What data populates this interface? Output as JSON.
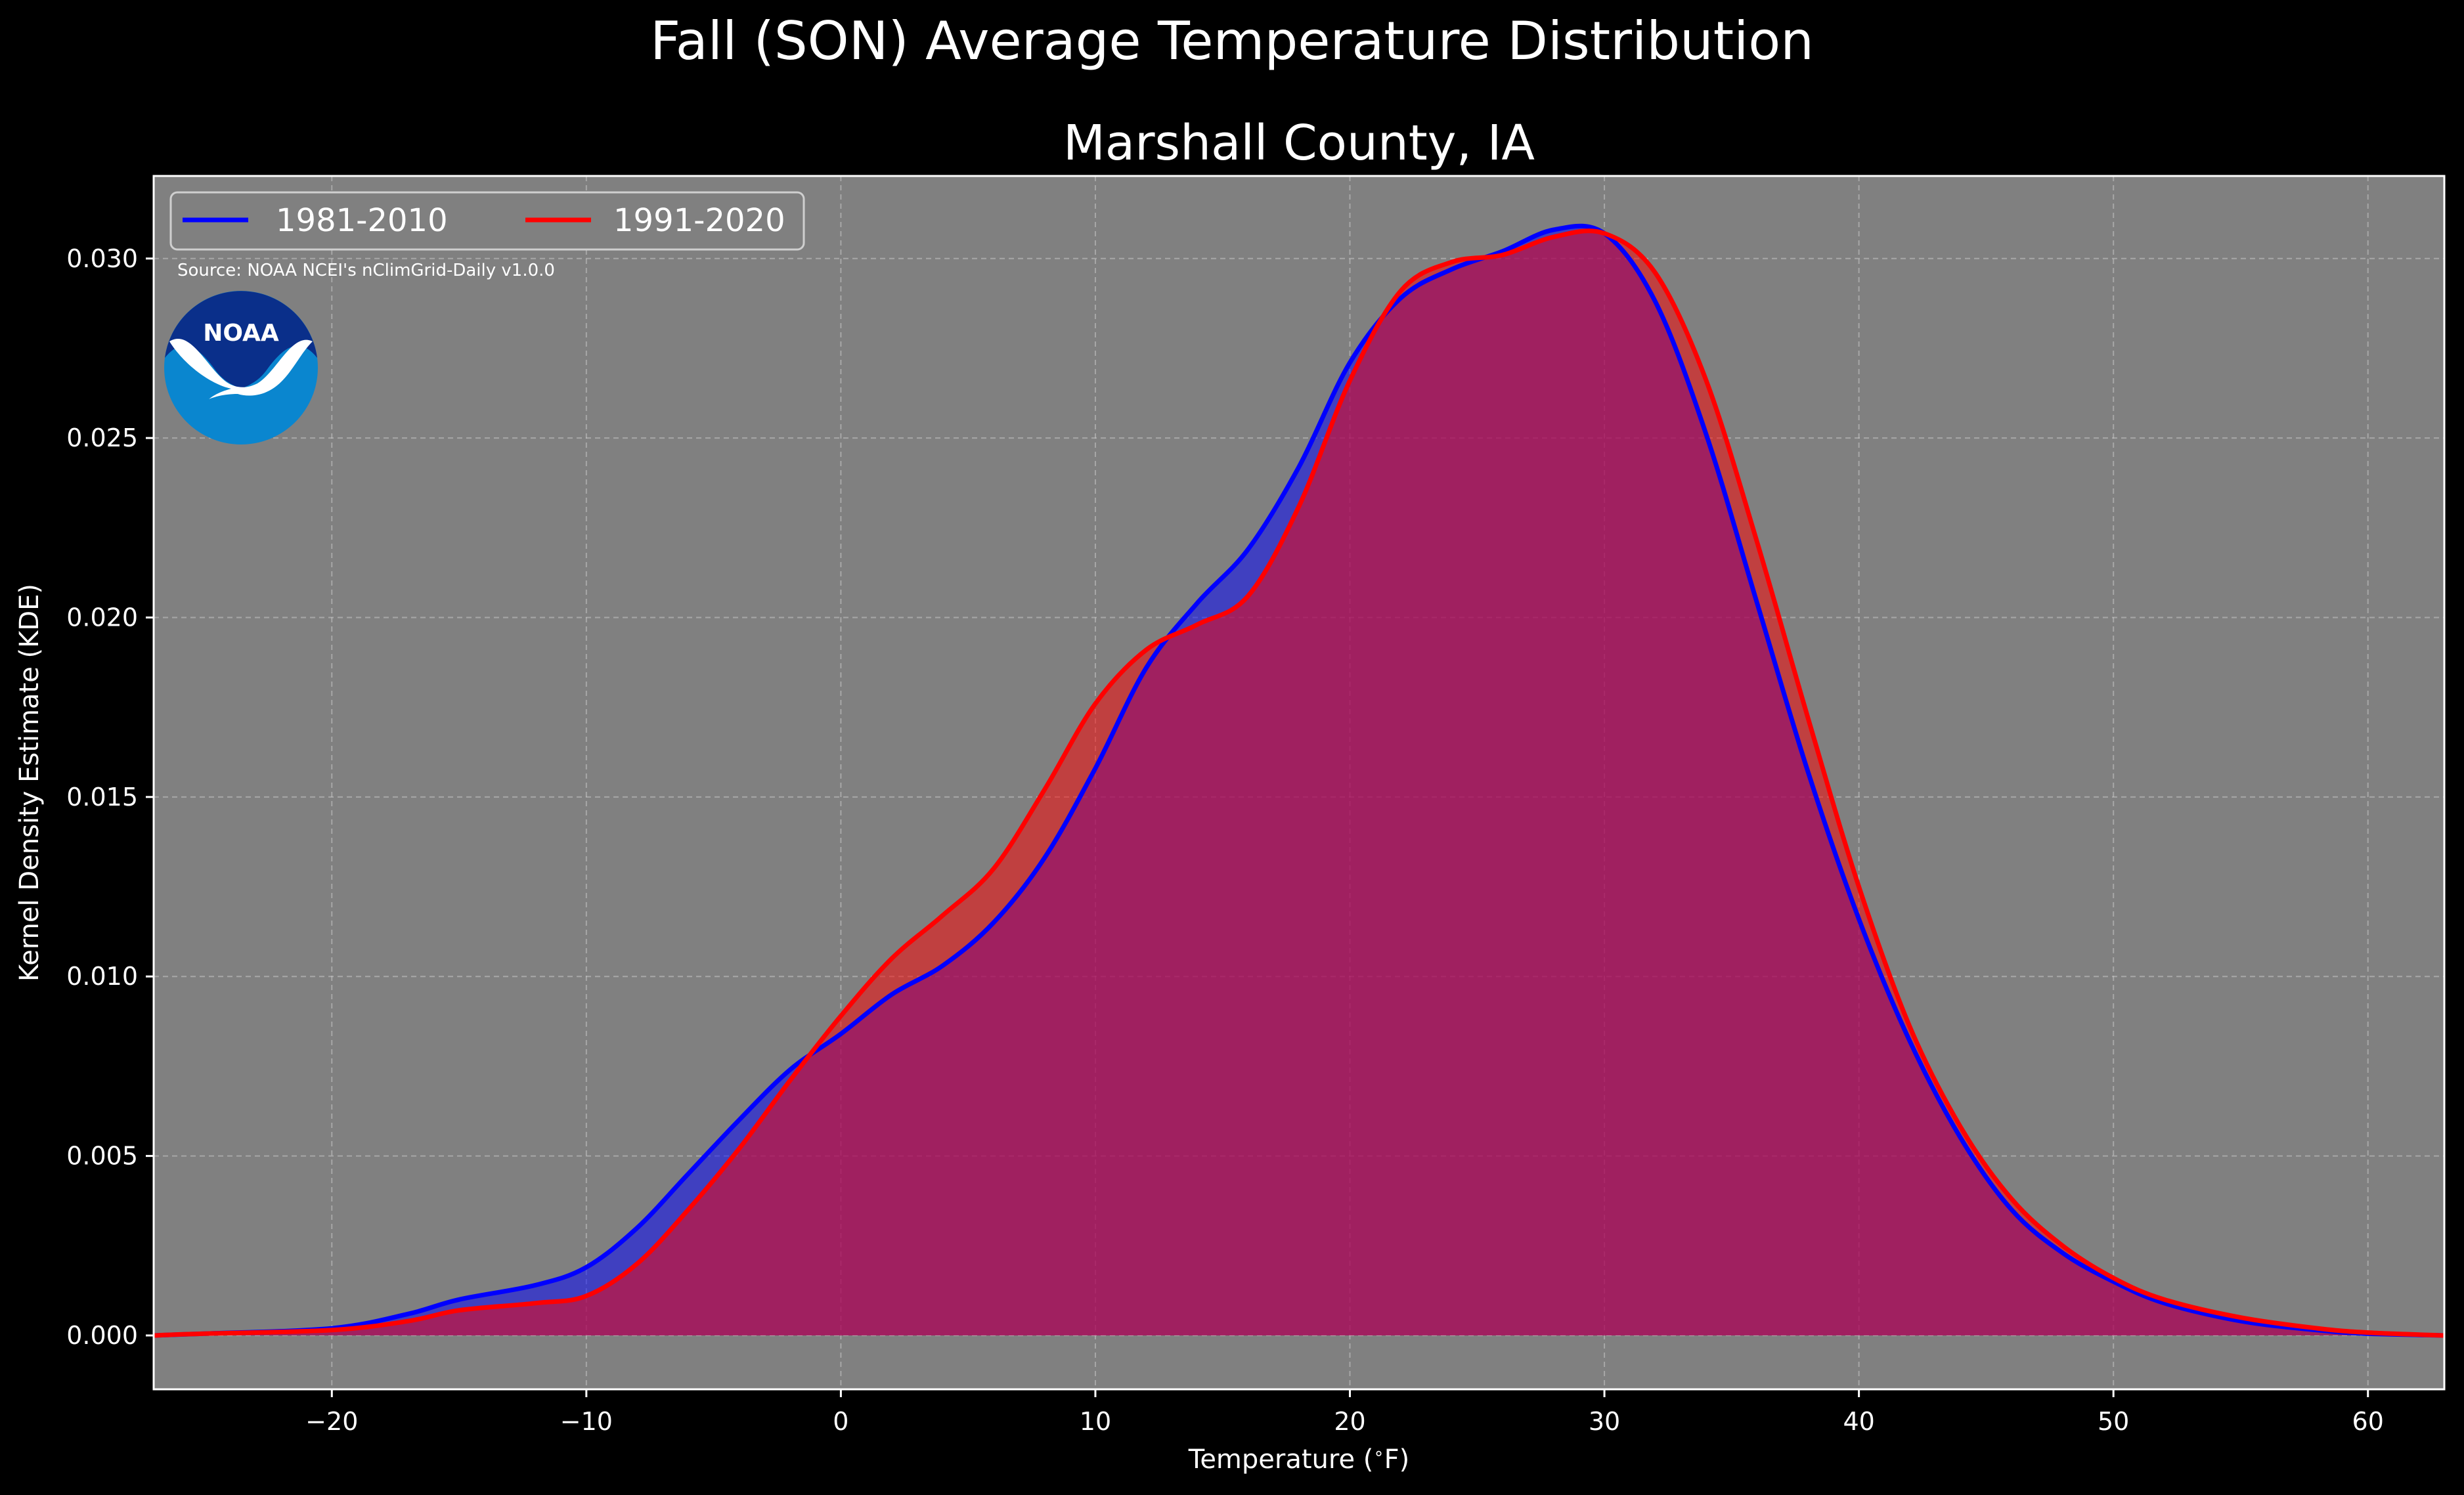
{
  "colors": {
    "background": "#000000",
    "plot_background": "#808080",
    "series_1981": "#0000ff",
    "series_1991": "#ff0000",
    "noaa_dark_blue": "#0a2f8a",
    "noaa_light_blue": "#0a86cf"
  },
  "figure": {
    "suptitle": "Fall (SON) Average Temperature Distribution",
    "subtitle": "Marshall County, IA",
    "source": "Source: NOAA NCEI's nClimGrid-Daily v1.0.0",
    "logo_text": "NOAA"
  },
  "chart_data": {
    "type": "area",
    "title": "Marshall County, IA",
    "xlabel": "Temperature ($^\\circ$F)",
    "ylabel": "Kernel Density Estimate (KDE)",
    "xlim": [
      -27,
      63
    ],
    "ylim": [
      -0.0015,
      0.0323
    ],
    "x_ticks": [
      -20,
      -10,
      0,
      10,
      20,
      30,
      40,
      50,
      60
    ],
    "x_tick_labels": [
      "−20",
      "−10",
      "0",
      "10",
      "20",
      "30",
      "40",
      "50",
      "60"
    ],
    "y_ticks": [
      0.0,
      0.005,
      0.01,
      0.015,
      0.02,
      0.025,
      0.03
    ],
    "y_tick_labels": [
      "0.000",
      "0.005",
      "0.010",
      "0.015",
      "0.020",
      "0.025",
      "0.030"
    ],
    "grid": true,
    "legend": "upper left",
    "x": [
      -27,
      -25,
      -20,
      -17,
      -15,
      -12,
      -10,
      -8,
      -6,
      -4,
      -2,
      0,
      2,
      4,
      6,
      8,
      10,
      12,
      14,
      16,
      18,
      20,
      22,
      24,
      26,
      28,
      30,
      32,
      34,
      36,
      38,
      40,
      42,
      44,
      46,
      48,
      50,
      52,
      55,
      58,
      60,
      63
    ],
    "series": [
      {
        "name": "1981-2010",
        "color": "#0000ff",
        "values": [
          0.0,
          5e-05,
          0.0002,
          0.0006,
          0.001,
          0.0014,
          0.0019,
          0.003,
          0.0045,
          0.006,
          0.0074,
          0.0084,
          0.0095,
          0.0103,
          0.0115,
          0.0133,
          0.0158,
          0.0186,
          0.0204,
          0.0219,
          0.0242,
          0.0271,
          0.0289,
          0.0297,
          0.0302,
          0.0308,
          0.0307,
          0.0288,
          0.0251,
          0.0204,
          0.0157,
          0.0116,
          0.0082,
          0.0055,
          0.0035,
          0.0023,
          0.0015,
          0.0009,
          0.0004,
          0.00015,
          5e-05,
          0.0
        ]
      },
      {
        "name": "1991-2020",
        "color": "#ff0000",
        "values": [
          0.0,
          5e-05,
          0.00015,
          0.0004,
          0.0007,
          0.0009,
          0.0011,
          0.002,
          0.0035,
          0.0052,
          0.0071,
          0.0089,
          0.0105,
          0.0117,
          0.013,
          0.0152,
          0.0176,
          0.0191,
          0.0198,
          0.0206,
          0.0231,
          0.0266,
          0.0291,
          0.0299,
          0.0301,
          0.0306,
          0.0307,
          0.0296,
          0.0266,
          0.0221,
          0.0172,
          0.0125,
          0.0086,
          0.0058,
          0.0038,
          0.0025,
          0.0016,
          0.001,
          0.0005,
          0.0002,
          8e-05,
          0.0
        ]
      }
    ]
  }
}
